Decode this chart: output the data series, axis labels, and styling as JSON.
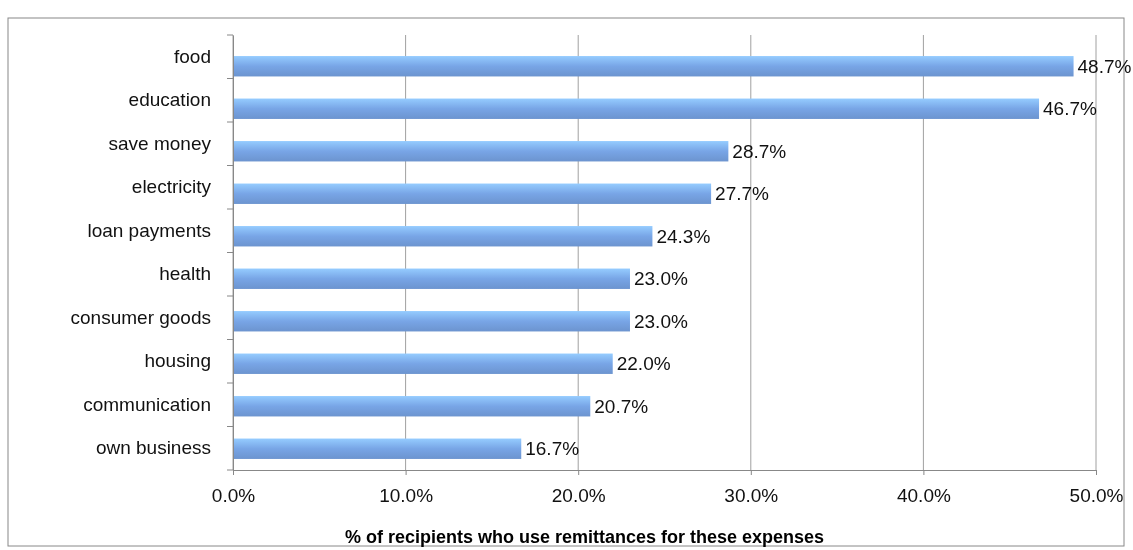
{
  "chart_data": {
    "type": "bar",
    "orientation": "horizontal",
    "xlabel": "% of recipients who use remittances for these expenses",
    "categories": [
      "food",
      "education",
      "save money",
      "electricity",
      "loan payments",
      "health",
      "consumer goods",
      "housing",
      "communication",
      "own business"
    ],
    "values": [
      48.7,
      46.7,
      28.7,
      27.7,
      24.3,
      23.0,
      23.0,
      22.0,
      20.7,
      16.7
    ],
    "value_labels": [
      "48.7%",
      "46.7%",
      "28.7%",
      "27.7%",
      "24.3%",
      "23.0%",
      "23.0%",
      "22.0%",
      "20.7%",
      "16.7%"
    ],
    "color": "#78a5e6",
    "xlim": [
      0,
      50
    ],
    "xticks": [
      {
        "value": 0,
        "label": "0.0%"
      },
      {
        "value": 10,
        "label": "10.0%"
      },
      {
        "value": 20,
        "label": "20.0%"
      },
      {
        "value": 30,
        "label": "30.0%"
      },
      {
        "value": 40,
        "label": "40.0%"
      },
      {
        "value": 50,
        "label": "50.0%"
      }
    ],
    "grid": "x"
  }
}
